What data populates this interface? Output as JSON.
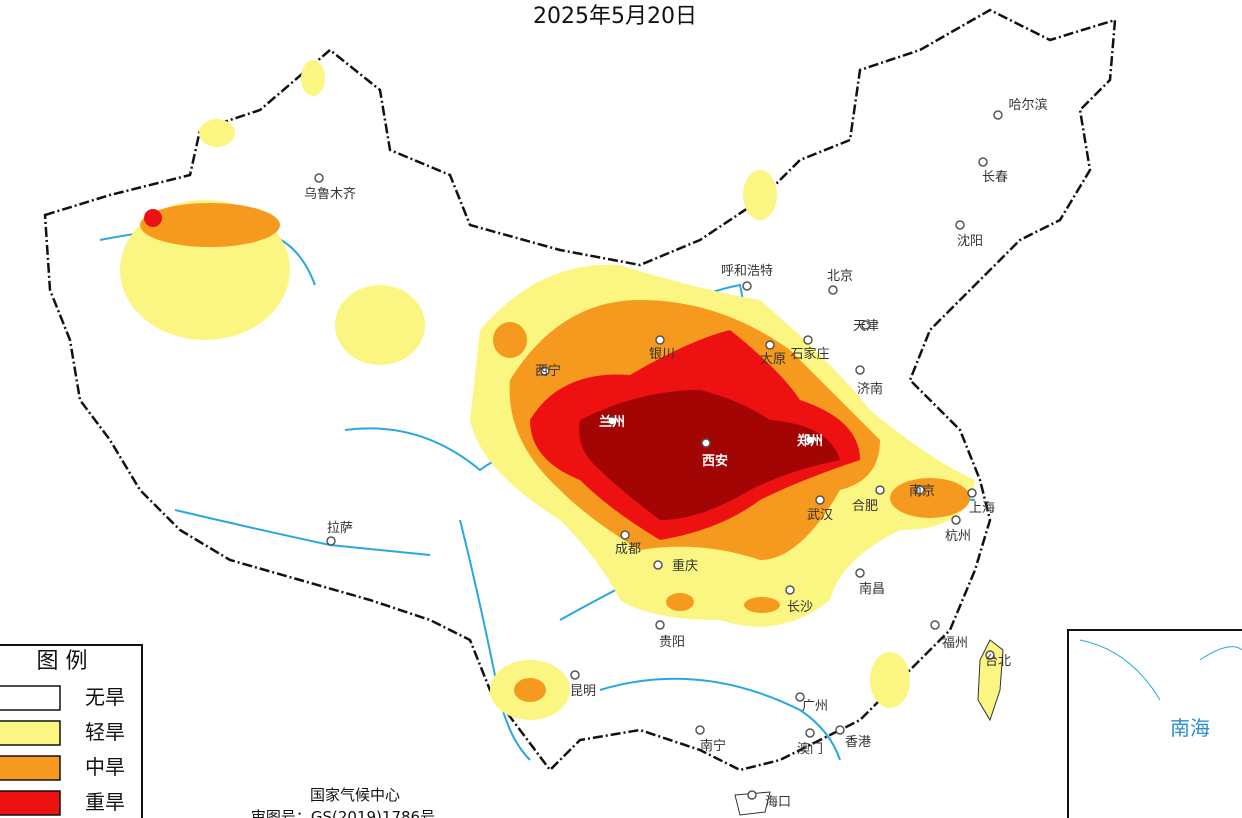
{
  "title": "2025年5月20日",
  "cities": [
    "乌鲁木齐",
    "拉萨",
    "西宁",
    "兰州",
    "银川",
    "呼和浩特",
    "北京",
    "天津",
    "石家庄",
    "太原",
    "济南",
    "郑州",
    "西安",
    "南京",
    "合肥",
    "上海",
    "杭州",
    "武汉",
    "成都",
    "重庆",
    "长沙",
    "南昌",
    "贵阳",
    "昆明",
    "福州",
    "台北",
    "广州",
    "香港",
    "澳门",
    "南宁",
    "海口",
    "哈尔滨",
    "长春",
    "沈阳"
  ],
  "legend": {
    "title": "图 例",
    "items": [
      {
        "label": "无旱",
        "color": "#ffffff"
      },
      {
        "label": "轻旱",
        "color": "#fbf582"
      },
      {
        "label": "中旱",
        "color": "#f59a1e"
      },
      {
        "label": "重旱",
        "color": "#ee1111"
      }
    ]
  },
  "source": "国家气候中心",
  "approval": "审图号：GS(2019)1786号",
  "inset": "南海"
}
